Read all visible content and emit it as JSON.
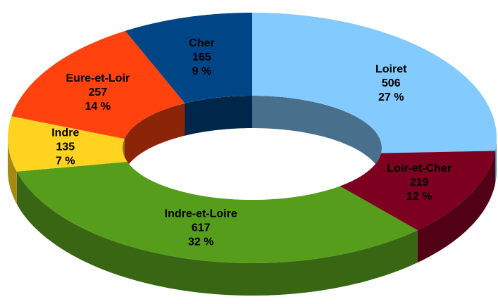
{
  "chart_data": {
    "type": "donut",
    "categories": [
      "Loiret",
      "Loir-et-Cher",
      "Indre-et-Loire",
      "Indre",
      "Eure-et-Loir",
      "Cher"
    ],
    "values": [
      506,
      219,
      617,
      135,
      257,
      165
    ],
    "percent_labels": [
      "27 %",
      "12 %",
      "32 %",
      "7 %",
      "14 %",
      "9 %"
    ],
    "colors": [
      "#83caff",
      "#7e0021",
      "#579d1c",
      "#ffd320",
      "#ff420e",
      "#004586"
    ]
  }
}
